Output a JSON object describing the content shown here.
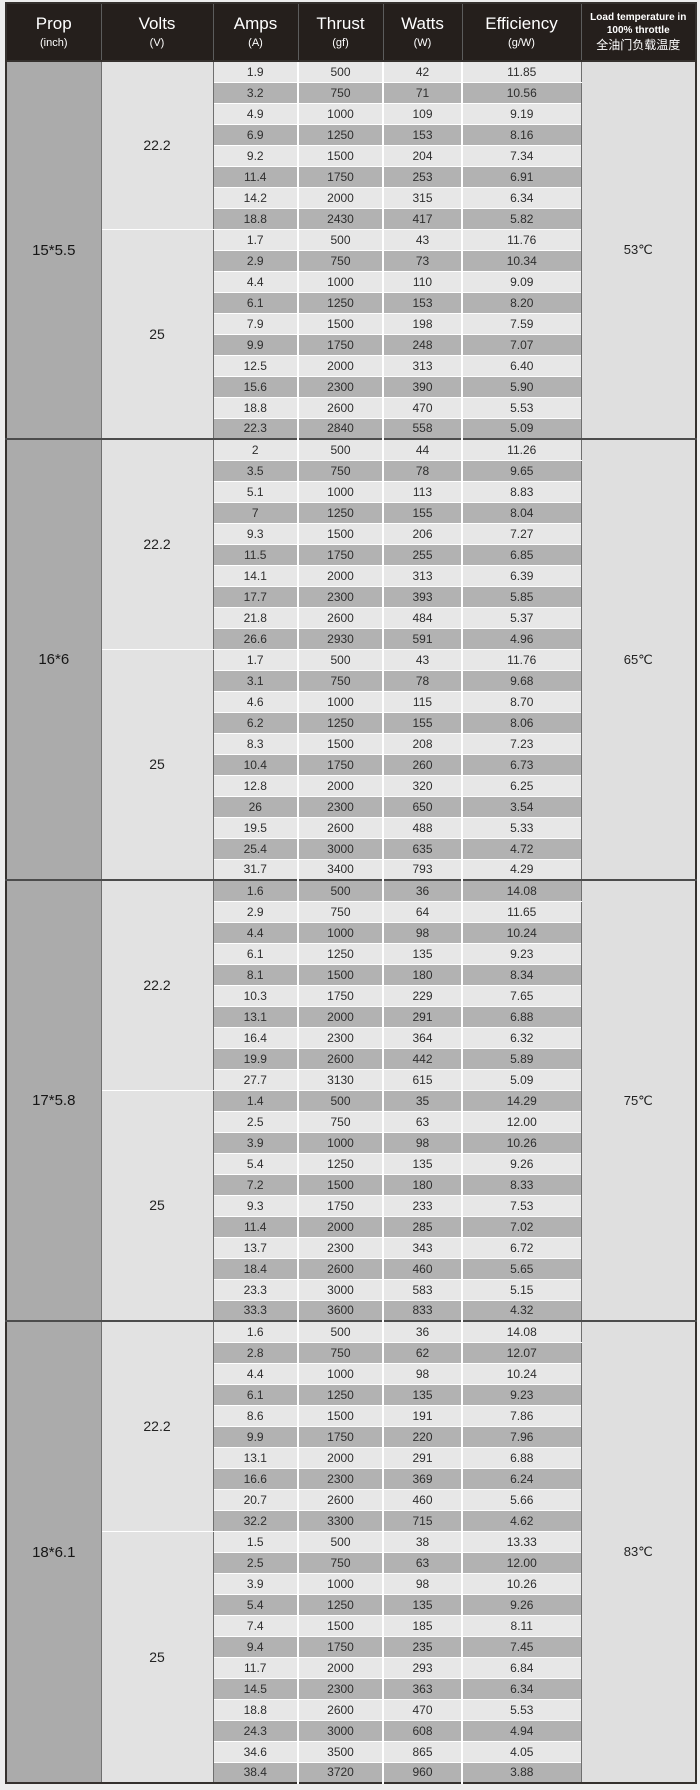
{
  "table": {
    "headers": [
      {
        "line1": "Prop",
        "line2": "(inch)"
      },
      {
        "line1": "Volts",
        "line2": "(V)"
      },
      {
        "line1": "Amps",
        "line2": "(A)"
      },
      {
        "line1": "Thrust",
        "line2": "(gf)"
      },
      {
        "line1": "Watts",
        "line2": "(W)"
      },
      {
        "line1": "Efficiency",
        "line2": "(g/W)"
      },
      {
        "line1": "Load temperature in 100% throttle",
        "line2": "全油门负载温度"
      }
    ],
    "colors": {
      "header_bg": "#251f1c",
      "header_text": "#ffffff",
      "row_light": "#e7e7e7",
      "row_dark": "#b2b2b2",
      "prop_col_bg": "#ababab",
      "volts_col_bg": "#e2e2e2",
      "temp_col_bg": "#dfdfdf"
    },
    "sections": [
      {
        "prop": "15*5.5",
        "temperature": "53℃",
        "voltage_groups": [
          {
            "volts": "22.2",
            "rows": [
              [
                "1.9",
                "500",
                "42",
                "11.85"
              ],
              [
                "3.2",
                "750",
                "71",
                "10.56"
              ],
              [
                "4.9",
                "1000",
                "109",
                "9.19"
              ],
              [
                "6.9",
                "1250",
                "153",
                "8.16"
              ],
              [
                "9.2",
                "1500",
                "204",
                "7.34"
              ],
              [
                "11.4",
                "1750",
                "253",
                "6.91"
              ],
              [
                "14.2",
                "2000",
                "315",
                "6.34"
              ],
              [
                "18.8",
                "2430",
                "417",
                "5.82"
              ]
            ]
          },
          {
            "volts": "25",
            "rows": [
              [
                "1.7",
                "500",
                "43",
                "11.76"
              ],
              [
                "2.9",
                "750",
                "73",
                "10.34"
              ],
              [
                "4.4",
                "1000",
                "110",
                "9.09"
              ],
              [
                "6.1",
                "1250",
                "153",
                "8.20"
              ],
              [
                "7.9",
                "1500",
                "198",
                "7.59"
              ],
              [
                "9.9",
                "1750",
                "248",
                "7.07"
              ],
              [
                "12.5",
                "2000",
                "313",
                "6.40"
              ],
              [
                "15.6",
                "2300",
                "390",
                "5.90"
              ],
              [
                "18.8",
                "2600",
                "470",
                "5.53"
              ],
              [
                "22.3",
                "2840",
                "558",
                "5.09"
              ]
            ]
          }
        ]
      },
      {
        "prop": "16*6",
        "temperature": "65℃",
        "voltage_groups": [
          {
            "volts": "22.2",
            "rows": [
              [
                "2",
                "500",
                "44",
                "11.26"
              ],
              [
                "3.5",
                "750",
                "78",
                "9.65"
              ],
              [
                "5.1",
                "1000",
                "113",
                "8.83"
              ],
              [
                "7",
                "1250",
                "155",
                "8.04"
              ],
              [
                "9.3",
                "1500",
                "206",
                "7.27"
              ],
              [
                "11.5",
                "1750",
                "255",
                "6.85"
              ],
              [
                "14.1",
                "2000",
                "313",
                "6.39"
              ],
              [
                "17.7",
                "2300",
                "393",
                "5.85"
              ],
              [
                "21.8",
                "2600",
                "484",
                "5.37"
              ],
              [
                "26.6",
                "2930",
                "591",
                "4.96"
              ]
            ]
          },
          {
            "volts": "25",
            "rows": [
              [
                "1.7",
                "500",
                "43",
                "11.76"
              ],
              [
                "3.1",
                "750",
                "78",
                "9.68"
              ],
              [
                "4.6",
                "1000",
                "115",
                "8.70"
              ],
              [
                "6.2",
                "1250",
                "155",
                "8.06"
              ],
              [
                "8.3",
                "1500",
                "208",
                "7.23"
              ],
              [
                "10.4",
                "1750",
                "260",
                "6.73"
              ],
              [
                "12.8",
                "2000",
                "320",
                "6.25"
              ],
              [
                "26",
                "2300",
                "650",
                "3.54"
              ],
              [
                "19.5",
                "2600",
                "488",
                "5.33"
              ],
              [
                "25.4",
                "3000",
                "635",
                "4.72"
              ],
              [
                "31.7",
                "3400",
                "793",
                "4.29"
              ]
            ]
          }
        ]
      },
      {
        "prop": "17*5.8",
        "temperature": "75℃",
        "voltage_groups": [
          {
            "volts": "22.2",
            "rows": [
              [
                "1.6",
                "500",
                "36",
                "14.08"
              ],
              [
                "2.9",
                "750",
                "64",
                "11.65"
              ],
              [
                "4.4",
                "1000",
                "98",
                "10.24"
              ],
              [
                "6.1",
                "1250",
                "135",
                "9.23"
              ],
              [
                "8.1",
                "1500",
                "180",
                "8.34"
              ],
              [
                "10.3",
                "1750",
                "229",
                "7.65"
              ],
              [
                "13.1",
                "2000",
                "291",
                "6.88"
              ],
              [
                "16.4",
                "2300",
                "364",
                "6.32"
              ],
              [
                "19.9",
                "2600",
                "442",
                "5.89"
              ],
              [
                "27.7",
                "3130",
                "615",
                "5.09"
              ]
            ]
          },
          {
            "volts": "25",
            "rows": [
              [
                "1.4",
                "500",
                "35",
                "14.29"
              ],
              [
                "2.5",
                "750",
                "63",
                "12.00"
              ],
              [
                "3.9",
                "1000",
                "98",
                "10.26"
              ],
              [
                "5.4",
                "1250",
                "135",
                "9.26"
              ],
              [
                "7.2",
                "1500",
                "180",
                "8.33"
              ],
              [
                "9.3",
                "1750",
                "233",
                "7.53"
              ],
              [
                "11.4",
                "2000",
                "285",
                "7.02"
              ],
              [
                "13.7",
                "2300",
                "343",
                "6.72"
              ],
              [
                "18.4",
                "2600",
                "460",
                "5.65"
              ],
              [
                "23.3",
                "3000",
                "583",
                "5.15"
              ],
              [
                "33.3",
                "3600",
                "833",
                "4.32"
              ]
            ]
          }
        ]
      },
      {
        "prop": "18*6.1",
        "temperature": "83℃",
        "voltage_groups": [
          {
            "volts": "22.2",
            "rows": [
              [
                "1.6",
                "500",
                "36",
                "14.08"
              ],
              [
                "2.8",
                "750",
                "62",
                "12.07"
              ],
              [
                "4.4",
                "1000",
                "98",
                "10.24"
              ],
              [
                "6.1",
                "1250",
                "135",
                "9.23"
              ],
              [
                "8.6",
                "1500",
                "191",
                "7.86"
              ],
              [
                "9.9",
                "1750",
                "220",
                "7.96"
              ],
              [
                "13.1",
                "2000",
                "291",
                "6.88"
              ],
              [
                "16.6",
                "2300",
                "369",
                "6.24"
              ],
              [
                "20.7",
                "2600",
                "460",
                "5.66"
              ],
              [
                "32.2",
                "3300",
                "715",
                "4.62"
              ]
            ]
          },
          {
            "volts": "25",
            "rows": [
              [
                "1.5",
                "500",
                "38",
                "13.33"
              ],
              [
                "2.5",
                "750",
                "63",
                "12.00"
              ],
              [
                "3.9",
                "1000",
                "98",
                "10.26"
              ],
              [
                "5.4",
                "1250",
                "135",
                "9.26"
              ],
              [
                "7.4",
                "1500",
                "185",
                "8.11"
              ],
              [
                "9.4",
                "1750",
                "235",
                "7.45"
              ],
              [
                "11.7",
                "2000",
                "293",
                "6.84"
              ],
              [
                "14.5",
                "2300",
                "363",
                "6.34"
              ],
              [
                "18.8",
                "2600",
                "470",
                "5.53"
              ],
              [
                "24.3",
                "3000",
                "608",
                "4.94"
              ],
              [
                "34.6",
                "3500",
                "865",
                "4.05"
              ],
              [
                "38.4",
                "3720",
                "960",
                "3.88"
              ]
            ]
          }
        ]
      }
    ]
  }
}
